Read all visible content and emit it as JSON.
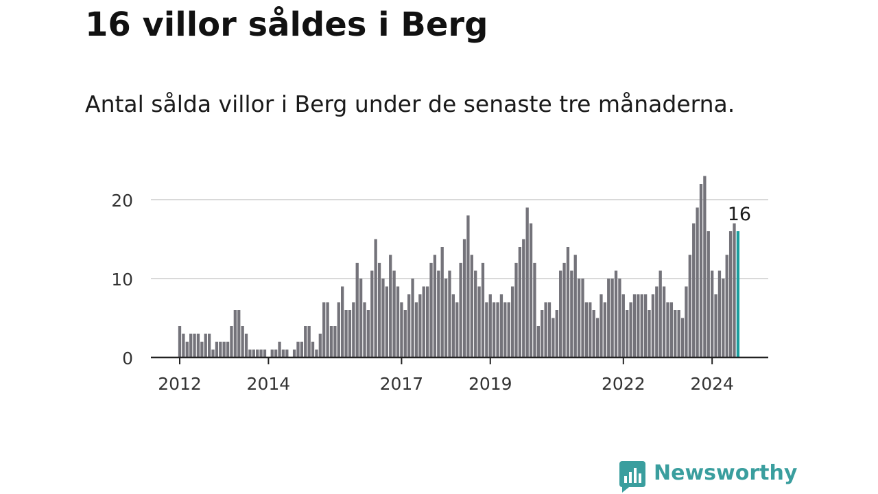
{
  "header": {
    "title": "16 villor såldes i Berg",
    "subtitle": "Antal sålda villor i Berg under de senaste tre månaderna."
  },
  "brand": {
    "name": "Newsworthy",
    "color": "#3a9e9e",
    "icon": "newsworthy-logo-icon"
  },
  "colors": {
    "bar": "#74737a",
    "highlight": "#1a9e9e",
    "grid": "#d9d9d9",
    "axis": "#222222"
  },
  "chart_data": {
    "type": "bar",
    "title": "16 villor såldes i Berg",
    "subtitle": "Antal sålda villor i Berg under de senaste tre månaderna.",
    "xlabel": "",
    "ylabel": "",
    "start": "2012-01",
    "frequency": "monthly",
    "ylim": [
      0,
      24
    ],
    "yticks": [
      0,
      10,
      20
    ],
    "xtick_labels": [
      {
        "label": "2012",
        "index": 0
      },
      {
        "label": "2014",
        "index": 24
      },
      {
        "label": "2017",
        "index": 60
      },
      {
        "label": "2019",
        "index": 84
      },
      {
        "label": "2022",
        "index": 120
      },
      {
        "label": "2024",
        "index": 144
      }
    ],
    "grid": true,
    "highlight": {
      "index": 151,
      "label": "16"
    },
    "values": [
      4,
      3,
      2,
      3,
      3,
      3,
      2,
      3,
      3,
      1,
      2,
      2,
      2,
      2,
      4,
      6,
      6,
      4,
      3,
      1,
      1,
      1,
      1,
      1,
      0,
      1,
      1,
      2,
      1,
      1,
      0,
      1,
      2,
      2,
      4,
      4,
      2,
      1,
      3,
      7,
      7,
      4,
      4,
      7,
      9,
      6,
      6,
      7,
      12,
      10,
      7,
      6,
      11,
      15,
      12,
      10,
      9,
      13,
      11,
      9,
      7,
      6,
      8,
      10,
      7,
      8,
      9,
      9,
      12,
      13,
      11,
      14,
      10,
      11,
      8,
      7,
      12,
      15,
      18,
      13,
      11,
      9,
      12,
      7,
      8,
      7,
      7,
      8,
      7,
      7,
      9,
      12,
      14,
      15,
      19,
      17,
      12,
      4,
      6,
      7,
      7,
      5,
      6,
      11,
      12,
      14,
      11,
      13,
      10,
      10,
      7,
      7,
      6,
      5,
      8,
      7,
      10,
      10,
      11,
      10,
      8,
      6,
      7,
      8,
      8,
      8,
      8,
      6,
      8,
      9,
      11,
      9,
      7,
      7,
      6,
      6,
      5,
      9,
      13,
      17,
      19,
      22,
      23,
      16,
      11,
      8,
      11,
      10,
      13,
      16,
      17,
      16
    ]
  }
}
